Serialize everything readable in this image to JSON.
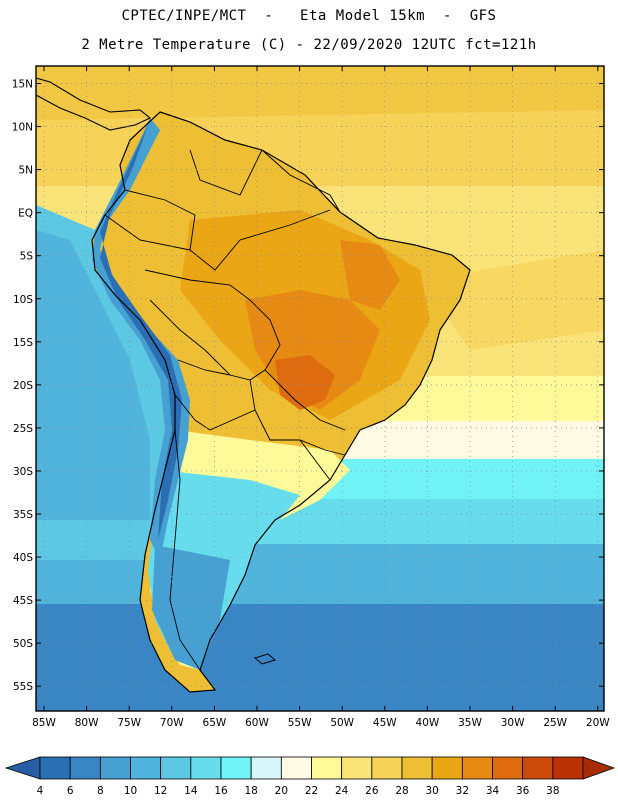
{
  "header": {
    "line1": "CPTEC/INPE/MCT  -   Eta Model 15km  -  GFS",
    "line2": "2 Metre Temperature (C) - 22/09/2020 12UTC fct=121h"
  },
  "map": {
    "lat_labels": [
      "15N",
      "10N",
      "5N",
      "EQ",
      "5S",
      "10S",
      "15S",
      "20S",
      "25S",
      "30S",
      "35S",
      "40S",
      "45S",
      "50S",
      "55S"
    ],
    "lon_labels": [
      "85W",
      "80W",
      "75W",
      "70W",
      "65W",
      "60W",
      "55W",
      "50W",
      "45W",
      "40W",
      "35W",
      "30W",
      "25W",
      "20W"
    ]
  },
  "colorbar": {
    "labels": [
      "4",
      "6",
      "8",
      "10",
      "12",
      "14",
      "16",
      "18",
      "20",
      "22",
      "24",
      "26",
      "28",
      "30",
      "32",
      "34",
      "36",
      "38"
    ],
    "colors": [
      "#2a6fb4",
      "#3a86c4",
      "#46a0d2",
      "#50b4dc",
      "#5cc8e4",
      "#66dcec",
      "#70f2f6",
      "#d6f6fa",
      "#fefae4",
      "#fefa9a",
      "#fae47a",
      "#f6d258",
      "#eebe34",
      "#eaa614",
      "#e68a14",
      "#de6c0e",
      "#cc4a0a",
      "#b83206"
    ],
    "low_color": "#2a5ea4",
    "high_color": "#aa2c04"
  }
}
